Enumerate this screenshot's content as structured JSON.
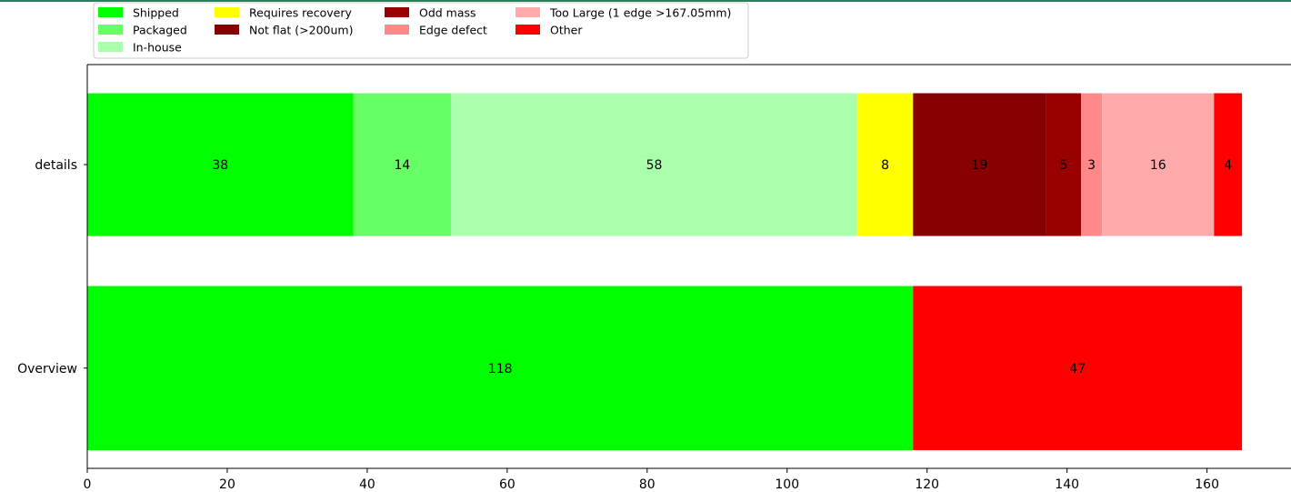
{
  "chart_data": {
    "type": "bar",
    "orientation": "horizontal",
    "stacked": true,
    "categories": [
      "details",
      "Overview"
    ],
    "series": [
      {
        "name": "Shipped",
        "color": "#00ff00",
        "values": [
          38,
          118
        ]
      },
      {
        "name": "Packaged",
        "color": "#66ff66",
        "values": [
          14,
          0
        ]
      },
      {
        "name": "In-house",
        "color": "#aaffaa",
        "values": [
          58,
          0
        ]
      },
      {
        "name": "Requires recovery",
        "color": "#ffff00",
        "values": [
          8,
          0
        ]
      },
      {
        "name": "Not flat (>200um)",
        "color": "#880000",
        "values": [
          19,
          0
        ]
      },
      {
        "name": "Odd mass",
        "color": "#990000",
        "values": [
          5,
          0
        ]
      },
      {
        "name": "Edge defect",
        "color": "#ff8888",
        "values": [
          3,
          0
        ]
      },
      {
        "name": "Too Large (1 edge >167.05mm)",
        "color": "#ffaaaa",
        "values": [
          16,
          0
        ]
      },
      {
        "name": "Other",
        "color": "#ff0000",
        "values": [
          4,
          47
        ]
      }
    ],
    "xlim": [
      0,
      172
    ],
    "xticks": [
      0,
      20,
      40,
      60,
      80,
      100,
      120,
      140,
      160
    ],
    "title": "",
    "xlabel": "",
    "ylabel": "",
    "grid": false,
    "legend_placement": "top-left, outside plot, 4 columns"
  }
}
